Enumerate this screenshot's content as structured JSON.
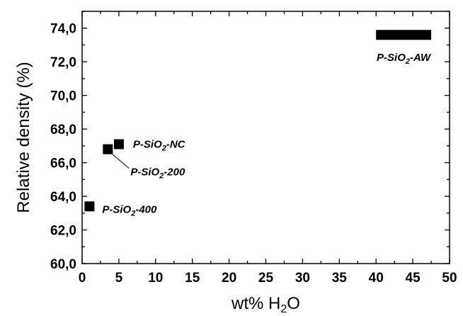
{
  "chart_data": {
    "type": "scatter",
    "xlabel": {
      "main": "wt% H",
      "sub": "2",
      "tail": "O"
    },
    "ylabel": "Relative density (%)",
    "xlim": [
      0,
      50
    ],
    "ylim": [
      60,
      75
    ],
    "xticks": [
      "0",
      "5",
      "10",
      "15",
      "20",
      "25",
      "30",
      "35",
      "40",
      "45",
      "50"
    ],
    "yticks": [
      "60,0",
      "62,0",
      "64,0",
      "66,0",
      "68,0",
      "70,0",
      "72,0",
      "74,0"
    ],
    "marker_color": "#000000",
    "points": [
      {
        "x": 1.0,
        "y": 63.4,
        "label": {
          "pre": "P-SiO",
          "sub": "2",
          "post": "-400"
        }
      },
      {
        "x": 3.5,
        "y": 66.8,
        "label": {
          "pre": "P-SiO",
          "sub": "2",
          "post": "-200"
        }
      },
      {
        "x": 5.0,
        "y": 67.1,
        "label": {
          "pre": "P-SiO",
          "sub": "2",
          "post": "-NC"
        }
      }
    ],
    "ranges": [
      {
        "x_start": 40,
        "x_end": 47.5,
        "y": 73.6,
        "label": {
          "pre": "P-SiO",
          "sub": "2",
          "post": "-AW"
        }
      }
    ]
  }
}
